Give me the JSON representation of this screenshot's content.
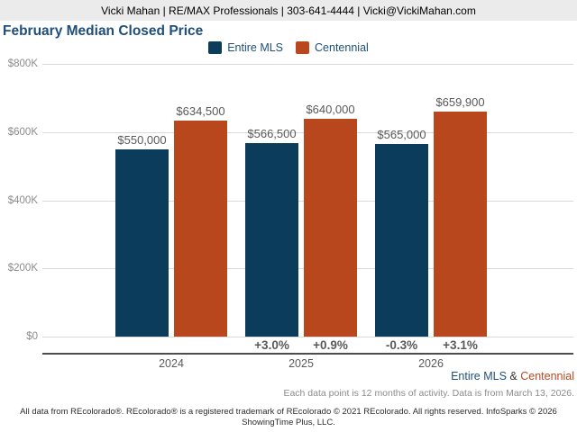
{
  "header": {
    "contact": "Vicki Mahan | RE/MAX Professionals | 303-641-4444 | Vicki@VickiMahan.com"
  },
  "title": "February Median Closed Price",
  "colors": {
    "entire_mls": "#0c3c5c",
    "centennial": "#b8471e",
    "title_navy": "#1f4e79",
    "gridline": "#d9d9d9",
    "header_bg": "#ebebeb"
  },
  "chart_data": {
    "type": "bar",
    "title": "February Median Closed Price",
    "categories": [
      "2024",
      "2025",
      "2026"
    ],
    "series": [
      {
        "name": "Entire MLS",
        "color": "#0c3c5c",
        "values": [
          550000,
          566500,
          565000
        ],
        "value_labels": [
          "$550,000",
          "$566,500",
          "$565,000"
        ],
        "pct_change": [
          "",
          "+3.0%",
          "-0.3%"
        ]
      },
      {
        "name": "Centennial",
        "color": "#b8471e",
        "values": [
          634500,
          640000,
          659900
        ],
        "value_labels": [
          "$634,500",
          "$640,000",
          "$659,900"
        ],
        "pct_change": [
          "",
          "+0.9%",
          "+3.1%"
        ]
      }
    ],
    "xlabel": "",
    "ylabel": "",
    "ylim": [
      0,
      800000
    ],
    "yticks": [
      {
        "value": 0,
        "label": "$0"
      },
      {
        "value": 200000,
        "label": "$200K"
      },
      {
        "value": 400000,
        "label": "$400K"
      },
      {
        "value": 600000,
        "label": "$600K"
      },
      {
        "value": 800000,
        "label": "$800K"
      }
    ],
    "grid": true,
    "legend_position": "top"
  },
  "annotations": {
    "series_note": {
      "entire": "Entire MLS",
      "amp": " & ",
      "centennial": "Centennial"
    },
    "data_note": "Each data point is 12 months of activity. Data is from March 13, 2026.",
    "footer": "All data from REcolorado®. REcolorado® is a registered trademark of REcolorado © 2021 REcolorado. All rights reserved. InfoSparks © 2026 ShowingTime Plus, LLC."
  }
}
